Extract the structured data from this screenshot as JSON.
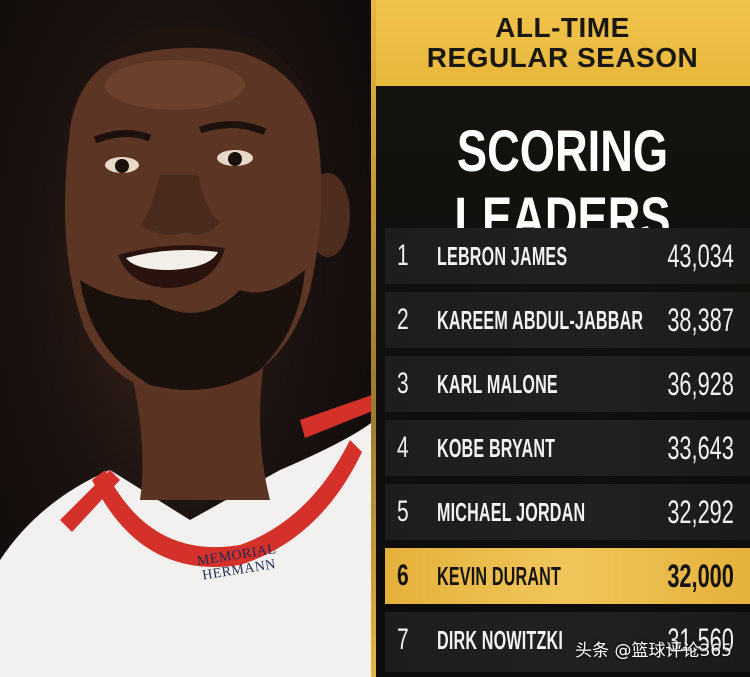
{
  "header": {
    "line1": "ALL-TIME",
    "line2": "REGULAR SEASON"
  },
  "title": "SCORING LEADERS",
  "leaders": [
    {
      "rank": "1",
      "name": "LEBRON JAMES",
      "points": "43,034",
      "highlight": false
    },
    {
      "rank": "2",
      "name": "KAREEM ABDUL-JABBAR",
      "points": "38,387",
      "highlight": false
    },
    {
      "rank": "3",
      "name": "KARL MALONE",
      "points": "36,928",
      "highlight": false
    },
    {
      "rank": "4",
      "name": "KOBE BRYANT",
      "points": "33,643",
      "highlight": false
    },
    {
      "rank": "5",
      "name": "MICHAEL JORDAN",
      "points": "32,292",
      "highlight": false
    },
    {
      "rank": "6",
      "name": "KEVIN DURANT",
      "points": "32,000",
      "highlight": true
    },
    {
      "rank": "7",
      "name": "DIRK NOWITZKI",
      "points": "31,560",
      "highlight": false
    }
  ],
  "photo": {
    "jersey_sponsor_line1": "MEMORIAL",
    "jersey_sponsor_line2": "HERMANN"
  },
  "watermark": "头条 @篮球评论365",
  "colors": {
    "gold": "#f0c34c",
    "panel_dark": "#0d0c0b",
    "row_dark": "#1e1d1b",
    "jersey_red": "#d4312b"
  }
}
